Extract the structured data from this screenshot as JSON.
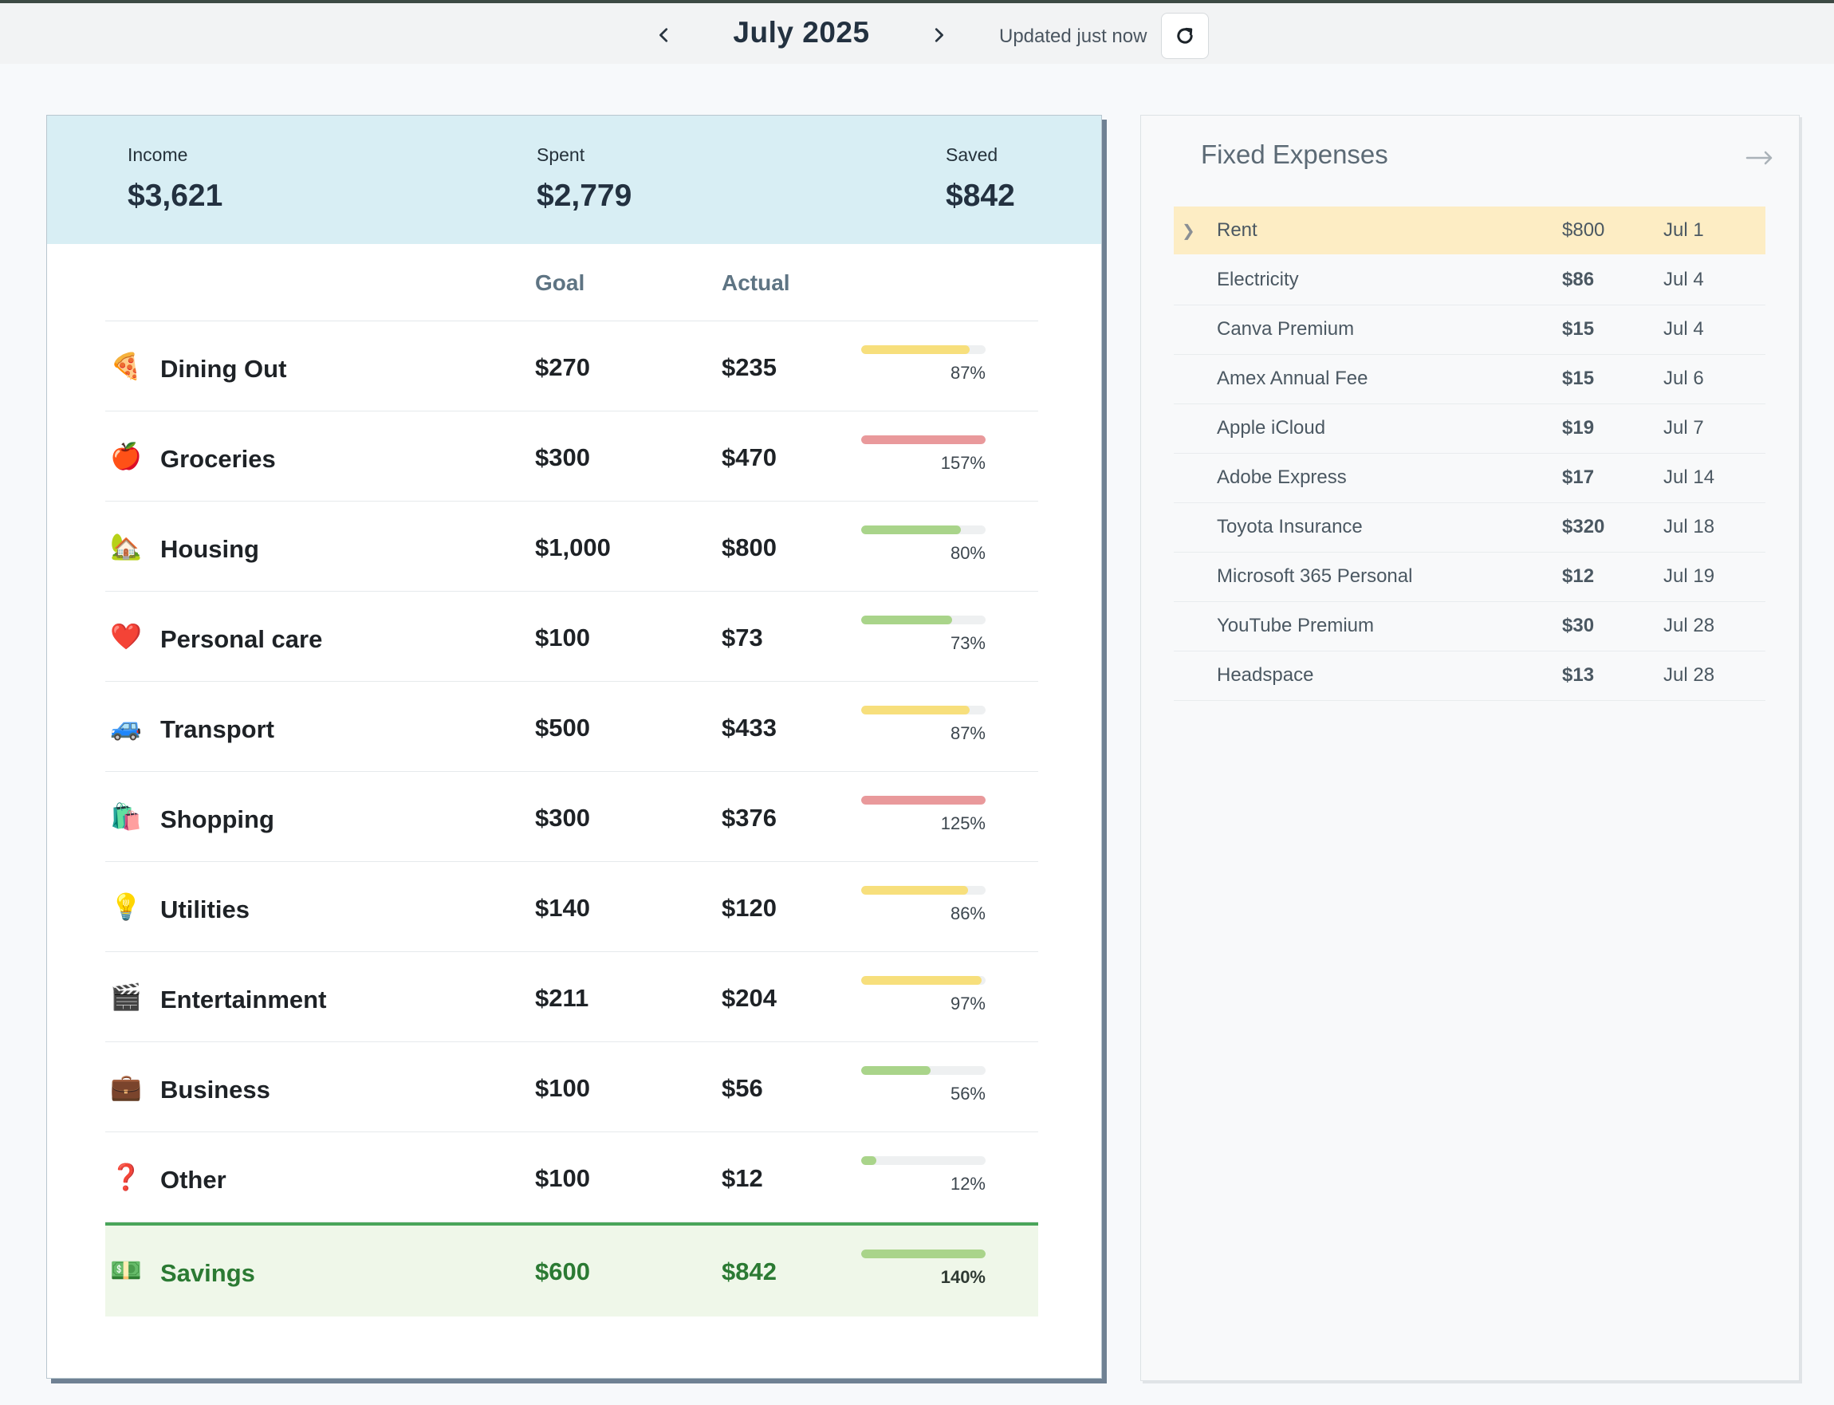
{
  "header": {
    "month": "July 2025",
    "updated": "Updated just now"
  },
  "summary": {
    "income_label": "Income",
    "income": "$3,621",
    "spent_label": "Spent",
    "spent": "$2,779",
    "saved_label": "Saved",
    "saved": "$842"
  },
  "table": {
    "goal_header": "Goal",
    "actual_header": "Actual",
    "rows": [
      {
        "icon": "🍕",
        "icon_name": "pizza-icon",
        "name": "Dining Out",
        "goal": "$270",
        "actual": "$235",
        "pct": "87%",
        "progress": 0.87,
        "color": "#f7df7c"
      },
      {
        "icon": "🍎",
        "icon_name": "apple-icon",
        "name": "Groceries",
        "goal": "$300",
        "actual": "$470",
        "pct": "157%",
        "progress": 1.0,
        "color": "#e9999b"
      },
      {
        "icon": "🏡",
        "icon_name": "house-icon",
        "name": "Housing",
        "goal": "$1,000",
        "actual": "$800",
        "pct": "80%",
        "progress": 0.8,
        "color": "#a9d48a"
      },
      {
        "icon": "❤️",
        "icon_name": "heart-icon",
        "name": "Personal care",
        "goal": "$100",
        "actual": "$73",
        "pct": "73%",
        "progress": 0.73,
        "color": "#a9d48a"
      },
      {
        "icon": "🚙",
        "icon_name": "car-icon",
        "name": "Transport",
        "goal": "$500",
        "actual": "$433",
        "pct": "87%",
        "progress": 0.87,
        "color": "#f7df7c"
      },
      {
        "icon": "🛍️",
        "icon_name": "shopping-bags-icon",
        "name": "Shopping",
        "goal": "$300",
        "actual": "$376",
        "pct": "125%",
        "progress": 1.0,
        "color": "#e9999b"
      },
      {
        "icon": "💡",
        "icon_name": "lightbulb-icon",
        "name": "Utilities",
        "goal": "$140",
        "actual": "$120",
        "pct": "86%",
        "progress": 0.86,
        "color": "#f7df7c"
      },
      {
        "icon": "🎬",
        "icon_name": "clapperboard-icon",
        "name": "Entertainment",
        "goal": "$211",
        "actual": "$204",
        "pct": "97%",
        "progress": 0.97,
        "color": "#f7df7c"
      },
      {
        "icon": "💼",
        "icon_name": "briefcase-icon",
        "name": "Business",
        "goal": "$100",
        "actual": "$56",
        "pct": "56%",
        "progress": 0.56,
        "color": "#a9d48a"
      },
      {
        "icon": "❓",
        "icon_name": "question-mark-icon",
        "name": "Other",
        "goal": "$100",
        "actual": "$12",
        "pct": "12%",
        "progress": 0.12,
        "color": "#a9d48a"
      }
    ],
    "savings": {
      "icon": "💵",
      "icon_name": "money-icon",
      "name": "Savings",
      "goal": "$600",
      "actual": "$842",
      "pct": "140%",
      "progress": 1.0,
      "color": "#a9d48a"
    }
  },
  "fixed": {
    "title": "Fixed Expenses",
    "items": [
      {
        "name": "Rent",
        "amount": "$800",
        "date": "Jul 1",
        "active": true
      },
      {
        "name": "Electricity",
        "amount": "$86",
        "date": "Jul 4"
      },
      {
        "name": "Canva Premium",
        "amount": "$15",
        "date": "Jul 4"
      },
      {
        "name": "Amex Annual Fee",
        "amount": "$15",
        "date": "Jul 6"
      },
      {
        "name": "Apple iCloud",
        "amount": "$19",
        "date": "Jul 7"
      },
      {
        "name": "Adobe Express",
        "amount": "$17",
        "date": "Jul 14"
      },
      {
        "name": "Toyota Insurance",
        "amount": "$320",
        "date": "Jul 18"
      },
      {
        "name": "Microsoft 365 Personal",
        "amount": "$12",
        "date": "Jul 19"
      },
      {
        "name": "YouTube Premium",
        "amount": "$30",
        "date": "Jul 28"
      },
      {
        "name": "Headspace",
        "amount": "$13",
        "date": "Jul 28"
      }
    ]
  }
}
